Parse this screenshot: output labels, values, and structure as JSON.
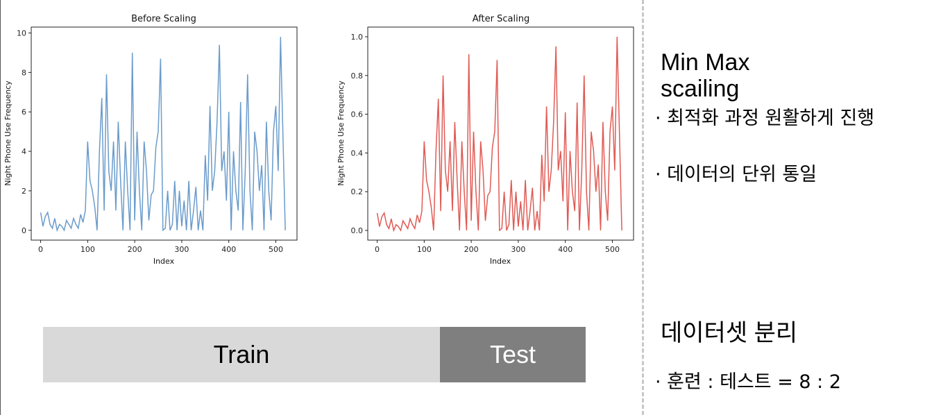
{
  "chart_data": [
    {
      "type": "line",
      "title": "Before Scaling",
      "xlabel": "Index",
      "ylabel": "Night Phone Use Frequency",
      "xlim": [
        -20,
        545
      ],
      "ylim": [
        -0.5,
        10.3
      ],
      "xticks": [
        0,
        100,
        200,
        300,
        400,
        500
      ],
      "yticks": [
        0,
        2,
        4,
        6,
        8,
        10
      ],
      "color": "#6a9bcb",
      "series_name": "Night Phone Use Frequency",
      "x_start": 0,
      "x_step": 5,
      "values": [
        0.9,
        0.2,
        0.7,
        0.9,
        0.3,
        0.1,
        0.6,
        0.0,
        0.3,
        0.2,
        0.0,
        0.5,
        0.3,
        0.1,
        0.6,
        0.3,
        0.1,
        0.8,
        0.4,
        1.0,
        4.5,
        2.5,
        2.0,
        1.2,
        0.0,
        4.0,
        6.7,
        1.0,
        7.9,
        3.0,
        2.0,
        4.5,
        1.0,
        5.5,
        2.5,
        0.0,
        4.5,
        2.0,
        0.0,
        9.0,
        0.5,
        5.0,
        2.0,
        0.0,
        4.5,
        3.0,
        0.5,
        1.8,
        2.0,
        4.2,
        5.0,
        8.7,
        0.0,
        0.1,
        2.0,
        0.0,
        0.3,
        2.5,
        0.0,
        2.0,
        0.2,
        1.5,
        0.0,
        2.5,
        0.0,
        1.0,
        2.2,
        0.0,
        1.0,
        0.0,
        3.8,
        1.5,
        6.3,
        2.0,
        3.0,
        5.5,
        9.4,
        3.0,
        4.0,
        1.5,
        6.0,
        0.0,
        4.0,
        2.0,
        1.0,
        6.5,
        0.0,
        3.0,
        7.9,
        2.0,
        0.0,
        5.0,
        4.0,
        2.0,
        3.3,
        0.0,
        5.5,
        2.0,
        0.5,
        5.0,
        6.3,
        3.0,
        9.8,
        0.0
      ],
      "last_index": 520
    },
    {
      "type": "line",
      "title": "After Scaling",
      "xlabel": "Index",
      "ylabel": "Night Phone Use Frequency",
      "xlim": [
        -20,
        545
      ],
      "ylim": [
        -0.05,
        1.05
      ],
      "xticks": [
        0,
        100,
        200,
        300,
        400,
        500
      ],
      "yticks": [
        0.0,
        0.2,
        0.4,
        0.6,
        0.8,
        1.0
      ],
      "color": "#e05a54",
      "series_name": "Night Phone Use Frequency",
      "x_start": 0,
      "x_step": 5,
      "values": [
        0.09,
        0.02,
        0.07,
        0.09,
        0.03,
        0.01,
        0.06,
        0.0,
        0.03,
        0.02,
        0.0,
        0.05,
        0.03,
        0.01,
        0.06,
        0.03,
        0.01,
        0.08,
        0.04,
        0.1,
        0.46,
        0.26,
        0.2,
        0.12,
        0.0,
        0.41,
        0.68,
        0.1,
        0.8,
        0.31,
        0.2,
        0.46,
        0.1,
        0.56,
        0.26,
        0.0,
        0.46,
        0.2,
        0.0,
        0.91,
        0.05,
        0.51,
        0.2,
        0.0,
        0.46,
        0.31,
        0.05,
        0.18,
        0.2,
        0.43,
        0.51,
        0.88,
        0.0,
        0.01,
        0.2,
        0.0,
        0.03,
        0.26,
        0.0,
        0.2,
        0.02,
        0.15,
        0.0,
        0.26,
        0.0,
        0.1,
        0.22,
        0.0,
        0.1,
        0.0,
        0.39,
        0.15,
        0.64,
        0.2,
        0.31,
        0.56,
        0.95,
        0.31,
        0.41,
        0.15,
        0.61,
        0.0,
        0.41,
        0.2,
        0.1,
        0.66,
        0.0,
        0.31,
        0.8,
        0.2,
        0.0,
        0.51,
        0.41,
        0.2,
        0.34,
        0.0,
        0.56,
        0.2,
        0.05,
        0.51,
        0.64,
        0.31,
        1.0,
        0.0
      ],
      "last_index": 520
    }
  ],
  "right_panel": {
    "heading1": "Min Max scailing",
    "bullet1": "· 최적화 과정 원활하게 진행",
    "bullet2": "· 데이터의 단위 통일",
    "heading2": "데이터셋 분리",
    "bullet3": "· 훈련 : 테스트 = 8 : 2"
  },
  "split_bar": {
    "train_label": "Train",
    "test_label": "Test",
    "train_ratio": 0.8,
    "test_ratio": 0.2
  }
}
